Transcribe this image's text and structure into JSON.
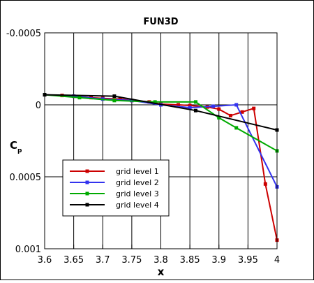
{
  "chart_data": {
    "type": "line",
    "title": "FUN3D",
    "xlabel": "x",
    "ylabel_main": "C",
    "ylabel_sub": "p",
    "xlim": [
      3.6,
      4.0
    ],
    "ylim": [
      -0.0005,
      0.001
    ],
    "y_inverted": true,
    "grid": true,
    "legend_position": "lower-left",
    "x_ticks": [
      {
        "value": 3.6,
        "label": "3.6"
      },
      {
        "value": 3.65,
        "label": "3.65"
      },
      {
        "value": 3.7,
        "label": "3.7"
      },
      {
        "value": 3.75,
        "label": "3.75"
      },
      {
        "value": 3.8,
        "label": "3.8"
      },
      {
        "value": 3.85,
        "label": "3.85"
      },
      {
        "value": 3.9,
        "label": "3.9"
      },
      {
        "value": 3.95,
        "label": "3.95"
      },
      {
        "value": 4.0,
        "label": "4"
      }
    ],
    "y_ticks": [
      {
        "value": -0.0005,
        "label": "-0.0005"
      },
      {
        "value": 0,
        "label": "0"
      },
      {
        "value": 0.0005,
        "label": "0.0005"
      },
      {
        "value": 0.001,
        "label": "0.001"
      }
    ],
    "series": [
      {
        "name": "grid level 1",
        "color": "#cc0000",
        "x": [
          3.6,
          3.63,
          3.65,
          3.68,
          3.7,
          3.73,
          3.75,
          3.78,
          3.8,
          3.83,
          3.85,
          3.88,
          3.9,
          3.92,
          3.94,
          3.96,
          3.98,
          4.0
        ],
        "y": [
          -7e-05,
          -6.5e-05,
          -6e-05,
          -5e-05,
          -4.5e-05,
          -4e-05,
          -3e-05,
          -2e-05,
          -5e-06,
          0.0,
          5e-06,
          1.5e-05,
          3e-05,
          7.5e-05,
          5e-05,
          2.5e-05,
          0.00055,
          0.00094
        ]
      },
      {
        "name": "grid level 2",
        "color": "#3333ee",
        "x": [
          3.6,
          3.65,
          3.7,
          3.75,
          3.8,
          3.85,
          3.89,
          3.93,
          4.0
        ],
        "y": [
          -7e-05,
          -6e-05,
          -4e-05,
          -3e-05,
          0.0,
          2e-05,
          1e-05,
          0.0,
          0.00057
        ]
      },
      {
        "name": "grid level 3",
        "color": "#00aa00",
        "x": [
          3.6,
          3.66,
          3.72,
          3.79,
          3.86,
          3.9,
          3.93,
          4.0
        ],
        "y": [
          -7e-05,
          -5e-05,
          -3e-05,
          -2e-05,
          -2e-05,
          9e-05,
          0.00016,
          0.00032
        ]
      },
      {
        "name": "grid level 4",
        "color": "#000000",
        "x": [
          3.6,
          3.72,
          3.86,
          4.0
        ],
        "y": [
          -7e-05,
          -6e-05,
          4e-05,
          0.000175
        ]
      }
    ]
  }
}
